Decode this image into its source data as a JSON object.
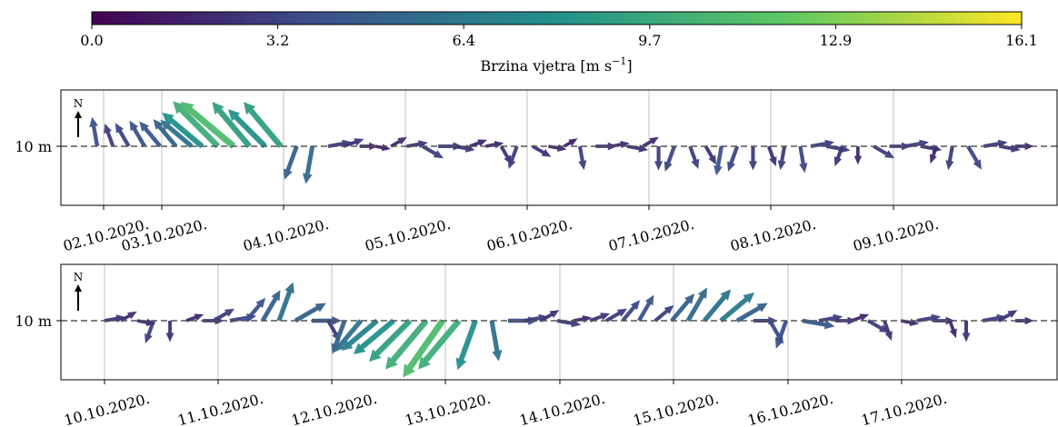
{
  "colorbar": {
    "label": "Brzina vjetra [m s",
    "label_sup": "−1",
    "label_end": "]",
    "ticks": [
      "0.0",
      "3.2",
      "6.4",
      "9.7",
      "12.9",
      "16.1"
    ],
    "range": [
      0.0,
      16.1
    ],
    "colormap": "viridis",
    "colors": [
      "#440154",
      "#3b528b",
      "#21918c",
      "#5ec962",
      "#fde725"
    ]
  },
  "chart_data": [
    {
      "type": "quiver",
      "ylabel": "10 m",
      "north_label": "N",
      "xticks": [
        "02.10.2020.",
        "03.10.2020.",
        "04.10.2020.",
        "05.10.2020.",
        "06.10.2020.",
        "07.10.2020.",
        "08.10.2020.",
        "09.10.2020."
      ],
      "grid": "vertical",
      "baseline": "dashed",
      "series": [
        {
          "t_days": [
            0.0,
            0.3,
            0.6,
            0.9,
            1.2,
            1.5,
            1.8,
            2.0,
            2.3,
            2.6,
            2.9,
            3.2,
            3.5,
            3.8,
            4.1,
            4.4,
            4.7,
            5.0,
            5.3,
            5.6,
            5.9,
            6.2,
            6.5,
            6.8,
            7.1,
            7.4,
            7.7,
            8.0,
            8.3,
            8.6,
            8.9,
            9.2,
            9.5,
            9.8,
            10.1,
            10.4,
            10.7,
            11.0,
            11.3,
            11.6,
            11.9,
            12.2,
            12.5,
            12.8,
            13.1,
            13.4,
            13.6,
            13.9,
            14.2,
            14.5,
            14.8,
            15.1,
            15.4,
            15.7,
            16.0,
            16.3,
            16.6,
            16.9,
            17.2,
            17.5
          ],
          "speed": [
            4,
            3,
            3.5,
            4,
            4.5,
            5,
            6,
            8,
            10,
            11,
            9,
            8,
            9,
            5,
            5.5,
            3,
            2.5,
            2,
            1.5,
            2,
            2.5,
            3,
            3,
            2.5,
            2,
            2,
            2.5,
            3,
            2.5,
            2,
            1.5,
            3,
            2.5,
            2,
            2.5,
            2,
            3,
            3.5,
            3,
            2.5,
            4,
            3.5,
            3,
            2.5,
            3,
            3.5,
            3,
            3,
            2.5,
            2,
            3,
            2.5,
            3,
            2.5,
            2,
            3,
            3.5,
            3,
            2.5,
            2
          ],
          "dir_deg": [
            350,
            340,
            330,
            330,
            320,
            320,
            310,
            310,
            315,
            310,
            320,
            315,
            320,
            200,
            190,
            80,
            70,
            90,
            100,
            60,
            80,
            120,
            90,
            100,
            70,
            80,
            150,
            200,
            120,
            100,
            60,
            170,
            90,
            80,
            100,
            60,
            180,
            200,
            160,
            150,
            190,
            200,
            180,
            160,
            190,
            170,
            80,
            100,
            200,
            180,
            120,
            90,
            80,
            100,
            200,
            190,
            150,
            80,
            100,
            90
          ]
        }
      ]
    },
    {
      "type": "quiver",
      "ylabel": "10 m",
      "north_label": "N",
      "xticks": [
        "10.10.2020.",
        "11.10.2020.",
        "12.10.2020.",
        "13.10.2020.",
        "14.10.2020.",
        "15.10.2020.",
        "16.10.2020.",
        "17.10.2020."
      ],
      "grid": "vertical",
      "baseline": "dashed",
      "series": [
        {
          "t_days": [
            0.0,
            0.3,
            0.6,
            0.9,
            1.2,
            1.5,
            1.8,
            2.0,
            2.3,
            2.6,
            2.9,
            3.2,
            3.5,
            3.8,
            4.1,
            4.4,
            4.7,
            5.0,
            5.3,
            5.6,
            5.9,
            6.2,
            6.5,
            6.8,
            7.1,
            7.4,
            7.7,
            8.0,
            8.3,
            8.6,
            8.9,
            9.2,
            9.5,
            9.8,
            10.1,
            10.4,
            10.7,
            11.0,
            11.3,
            11.6,
            11.9,
            12.2,
            12.5,
            12.8,
            13.1,
            13.4,
            13.7,
            14.0,
            14.3,
            14.6,
            14.9,
            15.2,
            15.5,
            15.8,
            16.1,
            16.4,
            16.7
          ],
          "speed": [
            2.5,
            2,
            2,
            3,
            2.5,
            2,
            2.5,
            3,
            3.5,
            4,
            5,
            6,
            5,
            4,
            3,
            5,
            6,
            7,
            8,
            9,
            10,
            11,
            10,
            8,
            6,
            4,
            3,
            2.5,
            3,
            2,
            2.5,
            3,
            3.5,
            4,
            3,
            5,
            5.5,
            6,
            6.5,
            5,
            3,
            3.5,
            4,
            4.5,
            3,
            2.5,
            2,
            3,
            2.5,
            2,
            3,
            2.5,
            2,
            2.5,
            3,
            2.5,
            2
          ],
          "dir_deg": [
            80,
            60,
            100,
            200,
            180,
            70,
            90,
            60,
            80,
            40,
            30,
            20,
            60,
            90,
            150,
            200,
            220,
            230,
            230,
            225,
            220,
            215,
            220,
            200,
            170,
            90,
            80,
            60,
            100,
            80,
            70,
            60,
            40,
            30,
            50,
            40,
            30,
            40,
            50,
            60,
            90,
            150,
            200,
            100,
            80,
            90,
            70,
            120,
            160,
            100,
            80,
            90,
            160,
            180,
            80,
            60,
            90
          ]
        }
      ]
    }
  ]
}
